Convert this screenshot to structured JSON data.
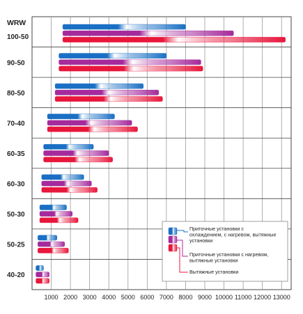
{
  "chart_data": {
    "type": "bar",
    "orientation": "horizontal",
    "category_header": "WRW",
    "categories": [
      "100-50",
      "90-50",
      "80-50",
      "70-40",
      "60-35",
      "60-30",
      "50-30",
      "50-25",
      "40-20"
    ],
    "x_ticks": [
      "1000",
      "2000",
      "3000",
      "4000",
      "5000",
      "6000",
      "7000",
      "8000",
      "9000",
      "10000",
      "11000",
      "12000",
      "13000"
    ],
    "xlim": [
      0,
      13500
    ],
    "grid": true,
    "legend_position": "bottom-right",
    "series": [
      {
        "name": "Приточные установки с охлаждением, с нагревом, вытяжные установки",
        "color": "#1a6fc4",
        "ranges": [
          [
            1600,
            8000
          ],
          [
            1400,
            7000
          ],
          [
            1200,
            5800
          ],
          [
            800,
            4300
          ],
          [
            600,
            3200
          ],
          [
            500,
            2700
          ],
          [
            400,
            1800
          ],
          [
            300,
            1300
          ],
          [
            200,
            600
          ]
        ]
      },
      {
        "name": "Приточные установки с нагревом, вытяжные установки",
        "color": "#a52a9c",
        "ranges": [
          [
            1600,
            10500
          ],
          [
            1400,
            8800
          ],
          [
            1200,
            6600
          ],
          [
            800,
            5200
          ],
          [
            600,
            4000
          ],
          [
            500,
            3100
          ],
          [
            400,
            2100
          ],
          [
            300,
            1700
          ],
          [
            200,
            900
          ]
        ]
      },
      {
        "name": "Вытяжные установки",
        "color": "#e8173c",
        "ranges": [
          [
            1600,
            13200
          ],
          [
            1400,
            8900
          ],
          [
            1200,
            6800
          ],
          [
            800,
            5500
          ],
          [
            600,
            4200
          ],
          [
            500,
            3400
          ],
          [
            400,
            2400
          ],
          [
            300,
            1900
          ],
          [
            200,
            900
          ]
        ]
      }
    ]
  }
}
